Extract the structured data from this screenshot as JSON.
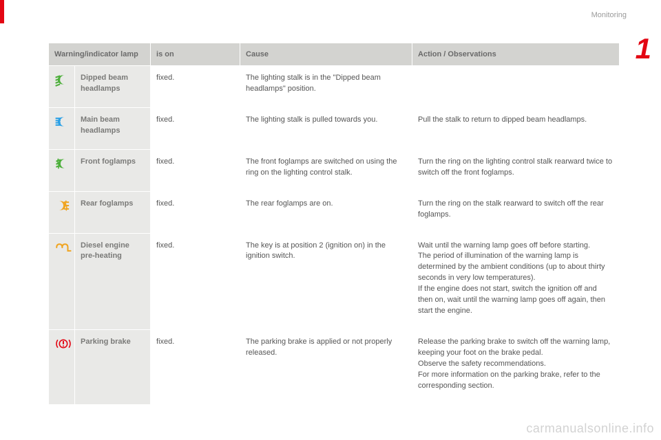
{
  "header": {
    "section": "Monitoring",
    "chapter": "1"
  },
  "colors": {
    "accent": "#e30613",
    "header_bg": "#d3d3d0",
    "shaded_bg": "#e9e9e7",
    "text": "#555555",
    "muted": "#9a9a9a",
    "icon_green": "#4caf3a",
    "icon_blue": "#2aa0e6",
    "icon_amber": "#f0a420",
    "icon_red": "#e30613"
  },
  "table": {
    "headers": {
      "lamp": "Warning/indicator lamp",
      "state": "is on",
      "cause": "Cause",
      "action": "Action / Observations"
    },
    "rows": [
      {
        "name": "Dipped beam headlamps",
        "state": "fixed.",
        "cause": "The lighting stalk is in the \"Dipped beam headlamps\" position.",
        "action": "",
        "icon": "dipped-beam",
        "icon_color": "#4caf3a"
      },
      {
        "name": "Main beam headlamps",
        "state": "fixed.",
        "cause": "The lighting stalk is pulled towards you.",
        "action": "Pull the stalk to return to dipped beam headlamps.",
        "icon": "main-beam",
        "icon_color": "#2aa0e6"
      },
      {
        "name": "Front foglamps",
        "state": "fixed.",
        "cause": "The front foglamps are switched on using the ring on the lighting control stalk.",
        "action": "Turn the ring on the lighting control stalk rearward twice to switch off the front foglamps.",
        "icon": "front-fog",
        "icon_color": "#4caf3a"
      },
      {
        "name": "Rear foglamps",
        "state": "fixed.",
        "cause": "The rear foglamps are on.",
        "action": "Turn the ring on the stalk rearward to switch off the rear foglamps.",
        "icon": "rear-fog",
        "icon_color": "#f0a420"
      },
      {
        "name": "Diesel engine pre-heating",
        "state": "fixed.",
        "cause": "The key is at position 2 (ignition on) in the ignition switch.",
        "action": "Wait until the warning lamp goes off before starting.\nThe period of illumination of the warning lamp is determined by the ambient conditions (up to about thirty seconds in very low temperatures).\nIf the engine does not start, switch the ignition off and then on, wait until the warning lamp goes off again, then start the engine.",
        "icon": "preheat",
        "icon_color": "#f0a420"
      },
      {
        "name": "Parking brake",
        "state": "fixed.",
        "cause": "The parking brake is applied or not properly released.",
        "action": "Release the parking brake to switch off the warning lamp, keeping your foot on the brake pedal.\nObserve the safety recommendations.\nFor more information on the parking brake, refer to the corresponding section.",
        "icon": "parking-brake",
        "icon_color": "#e30613"
      }
    ]
  },
  "watermark": "carmanualsonline.info"
}
